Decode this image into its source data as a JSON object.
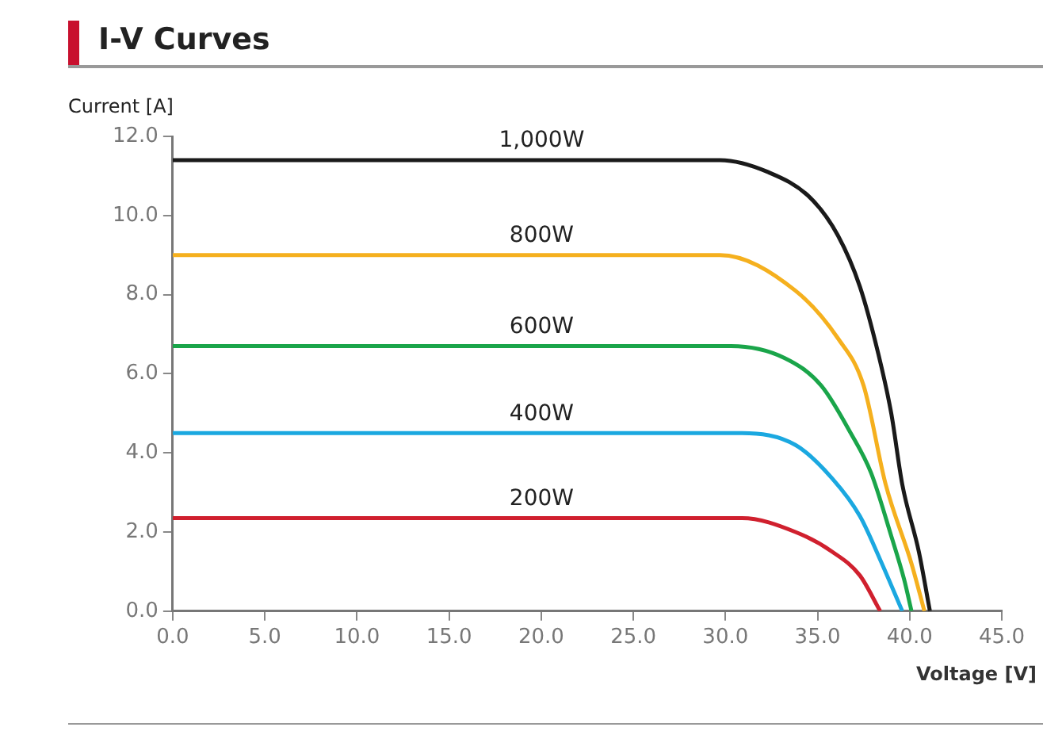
{
  "chart_data": {
    "type": "line",
    "title": "I-V Curves",
    "xlabel": "Voltage [V]",
    "ylabel": "Current [A]",
    "xlim": [
      0,
      45
    ],
    "ylim": [
      0,
      12
    ],
    "xticks": [
      {
        "value": 0,
        "label": "0.0"
      },
      {
        "value": 5,
        "label": "5.0"
      },
      {
        "value": 10,
        "label": "10.0"
      },
      {
        "value": 15,
        "label": "15.0"
      },
      {
        "value": 20,
        "label": "20.0"
      },
      {
        "value": 25,
        "label": "25.0"
      },
      {
        "value": 30,
        "label": "30.0"
      },
      {
        "value": 35,
        "label": "35.0"
      },
      {
        "value": 40,
        "label": "40.0"
      },
      {
        "value": 45,
        "label": "45.0"
      }
    ],
    "yticks": [
      {
        "value": 0,
        "label": "0.0"
      },
      {
        "value": 2,
        "label": "2.0"
      },
      {
        "value": 4,
        "label": "4.0"
      },
      {
        "value": 6,
        "label": "6.0"
      },
      {
        "value": 8,
        "label": "8.0"
      },
      {
        "value": 10,
        "label": "10.0"
      },
      {
        "value": 12,
        "label": "12.0"
      }
    ],
    "marker": "none",
    "legend": false,
    "series": [
      {
        "name": "1,000W",
        "color": "#1a1a1a",
        "x": [
          0,
          29.7,
          32.3,
          34.6,
          36.1,
          37.3,
          38.3,
          39.0,
          39.6,
          40.5,
          41.1
        ],
        "values": [
          11.4,
          11.4,
          11.1,
          10.45,
          9.5,
          8.2,
          6.5,
          5.0,
          3.2,
          1.5,
          0
        ]
      },
      {
        "name": "800W",
        "color": "#f5b01e",
        "x": [
          0,
          29.7,
          33.8,
          36.1,
          37.5,
          38.7,
          40.1,
          40.8
        ],
        "values": [
          9.0,
          9.0,
          8.1,
          6.9,
          5.7,
          3.2,
          1.2,
          0
        ]
      },
      {
        "name": "600W",
        "color": "#1aa54a",
        "x": [
          0,
          30.3,
          33.2,
          35.2,
          36.8,
          37.9,
          39.0,
          39.7,
          40.1
        ],
        "values": [
          6.7,
          6.7,
          6.4,
          5.7,
          4.5,
          3.5,
          1.9,
          0.8,
          0
        ]
      },
      {
        "name": "400W",
        "color": "#1ba8e0",
        "x": [
          0,
          30.9,
          33.8,
          35.8,
          37.3,
          38.4,
          39.6
        ],
        "values": [
          4.5,
          4.5,
          4.2,
          3.35,
          2.4,
          1.3,
          0
        ]
      },
      {
        "name": "200W",
        "color": "#d0202e",
        "x": [
          0,
          30.9,
          33.8,
          35.8,
          37.3,
          38.4
        ],
        "values": [
          2.35,
          2.35,
          2.0,
          1.5,
          0.9,
          0
        ]
      }
    ]
  }
}
